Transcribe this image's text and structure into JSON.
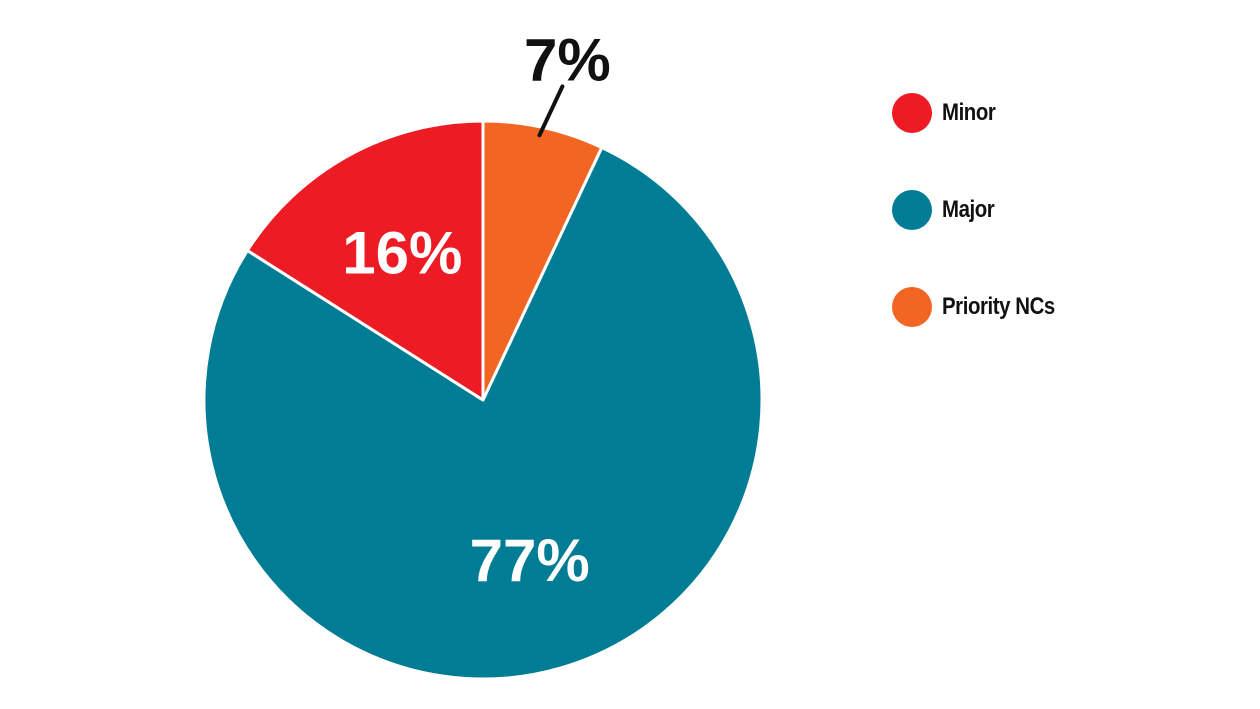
{
  "chart_data": {
    "type": "pie",
    "slices": [
      {
        "name": "Priority NCs",
        "value": 7,
        "label": "7%",
        "color": "#f26522"
      },
      {
        "name": "Major",
        "value": 77,
        "label": "77%",
        "color": "#007c95"
      },
      {
        "name": "Minor",
        "value": 16,
        "label": "16%",
        "color": "#ed1c24"
      }
    ],
    "legend": {
      "placement": "right",
      "entries": [
        {
          "name": "Minor",
          "color": "#ed1c24"
        },
        {
          "name": "Major",
          "color": "#007c95"
        },
        {
          "name": "Priority NCs",
          "color": "#f26522"
        }
      ]
    }
  }
}
